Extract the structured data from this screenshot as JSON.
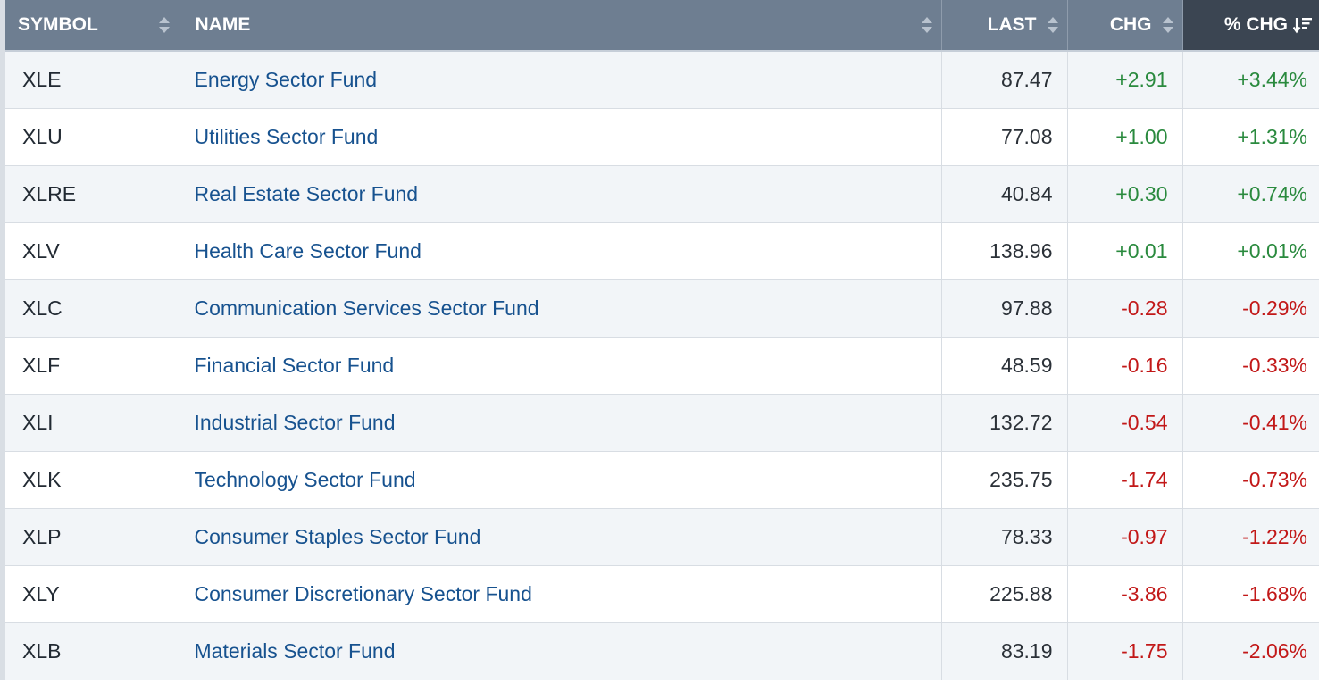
{
  "headers": {
    "symbol": "SYMBOL",
    "name": "NAME",
    "last": "LAST",
    "chg": "CHG",
    "pct_chg": "% CHG"
  },
  "sort": {
    "column": "pct_chg",
    "direction": "descending"
  },
  "colors": {
    "positive": "#2a8a3e",
    "negative": "#c21818",
    "link": "#17528f",
    "header_bg": "#6e7e91",
    "active_header_bg": "#3b4552"
  },
  "rows": [
    {
      "symbol": "XLE",
      "name": "Energy Sector Fund",
      "last": "87.47",
      "chg": "+2.91",
      "pct_chg": "+3.44%",
      "direction": "pos"
    },
    {
      "symbol": "XLU",
      "name": "Utilities Sector Fund",
      "last": "77.08",
      "chg": "+1.00",
      "pct_chg": "+1.31%",
      "direction": "pos"
    },
    {
      "symbol": "XLRE",
      "name": "Real Estate Sector Fund",
      "last": "40.84",
      "chg": "+0.30",
      "pct_chg": "+0.74%",
      "direction": "pos"
    },
    {
      "symbol": "XLV",
      "name": "Health Care Sector Fund",
      "last": "138.96",
      "chg": "+0.01",
      "pct_chg": "+0.01%",
      "direction": "pos"
    },
    {
      "symbol": "XLC",
      "name": "Communication Services Sector Fund",
      "last": "97.88",
      "chg": "-0.28",
      "pct_chg": "-0.29%",
      "direction": "neg"
    },
    {
      "symbol": "XLF",
      "name": "Financial Sector Fund",
      "last": "48.59",
      "chg": "-0.16",
      "pct_chg": "-0.33%",
      "direction": "neg"
    },
    {
      "symbol": "XLI",
      "name": "Industrial Sector Fund",
      "last": "132.72",
      "chg": "-0.54",
      "pct_chg": "-0.41%",
      "direction": "neg"
    },
    {
      "symbol": "XLK",
      "name": "Technology Sector Fund",
      "last": "235.75",
      "chg": "-1.74",
      "pct_chg": "-0.73%",
      "direction": "neg"
    },
    {
      "symbol": "XLP",
      "name": "Consumer Staples Sector Fund",
      "last": "78.33",
      "chg": "-0.97",
      "pct_chg": "-1.22%",
      "direction": "neg"
    },
    {
      "symbol": "XLY",
      "name": "Consumer Discretionary Sector Fund",
      "last": "225.88",
      "chg": "-3.86",
      "pct_chg": "-1.68%",
      "direction": "neg"
    },
    {
      "symbol": "XLB",
      "name": "Materials Sector Fund",
      "last": "83.19",
      "chg": "-1.75",
      "pct_chg": "-2.06%",
      "direction": "neg"
    }
  ]
}
